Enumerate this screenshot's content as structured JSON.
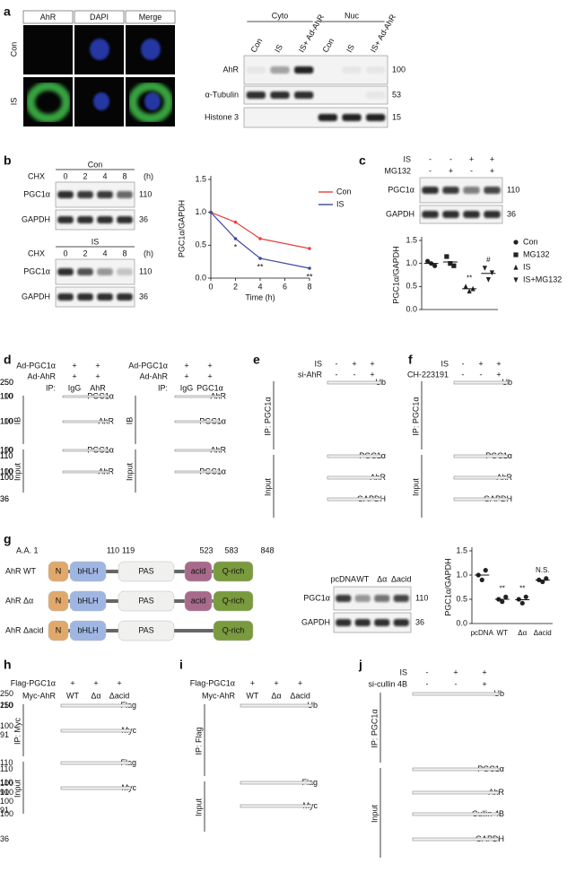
{
  "panels": {
    "a": {
      "label": "a",
      "image_headers": [
        "AhR",
        "DAPI",
        "Merge"
      ],
      "image_rows": [
        "Con",
        "IS"
      ],
      "fractions": [
        "Cyto",
        "Nuc"
      ],
      "lanes": [
        "Con",
        "IS",
        "IS+ Ad-AhR",
        "Con",
        "IS",
        "IS+ Ad-AhR"
      ],
      "rows": [
        {
          "name": "AhR",
          "mw": [
            "100"
          ]
        },
        {
          "name": "α-Tubulin",
          "mw": [
            "53"
          ]
        },
        {
          "name": "Histone 3",
          "mw": [
            "15"
          ]
        }
      ]
    },
    "b": {
      "label": "b",
      "blots": [
        {
          "title": "Con",
          "treatment": "CHX",
          "lanes": [
            "0",
            "2",
            "4",
            "8"
          ],
          "unit": "(h)",
          "rows": [
            {
              "name": "PGC1α",
              "mw": [
                "110"
              ]
            },
            {
              "name": "GAPDH",
              "mw": [
                "36"
              ]
            }
          ]
        },
        {
          "title": "IS",
          "treatment": "CHX",
          "lanes": [
            "0",
            "2",
            "4",
            "8"
          ],
          "unit": "(h)",
          "rows": [
            {
              "name": "PGC1α",
              "mw": [
                "110"
              ]
            },
            {
              "name": "GAPDH",
              "mw": [
                "36"
              ]
            }
          ]
        }
      ],
      "chart": {
        "type": "line",
        "x": [
          0,
          2,
          4,
          8
        ],
        "series": [
          {
            "name": "Con",
            "color": "#e8413c",
            "values": [
              1.0,
              0.85,
              0.6,
              0.45
            ]
          },
          {
            "name": "IS",
            "color": "#3b4a9c",
            "values": [
              1.0,
              0.6,
              0.3,
              0.15
            ]
          }
        ],
        "xlim": [
          0,
          8
        ],
        "xticks": [
          0,
          2,
          4,
          6,
          8
        ],
        "ylim": [
          0,
          1.5
        ],
        "yticks": [
          {
            "value": 0,
            "label": "0.0"
          },
          0.5,
          {
            "value": 1,
            "label": "1.0"
          },
          1.5
        ],
        "xlabel": "Time (h)",
        "ylabel": "PGC1α/GAPDH",
        "annotations": [
          {
            "x": 2,
            "text": "*"
          },
          {
            "x": 4,
            "text": "**"
          },
          {
            "x": 8,
            "text": "**"
          }
        ]
      }
    },
    "c": {
      "label": "c",
      "conditions": [
        {
          "name": "IS",
          "marks": [
            "-",
            "-",
            "+",
            "+"
          ]
        },
        {
          "name": "MG132",
          "marks": [
            "-",
            "+",
            "-",
            "+"
          ]
        }
      ],
      "rows": [
        {
          "name": "PGC1α",
          "mw": [
            "110"
          ]
        },
        {
          "name": "GAPDH",
          "mw": [
            "36"
          ]
        }
      ],
      "chart": {
        "type": "scatter",
        "categories": [
          "Con",
          "MG132",
          "IS",
          "IS+MG132"
        ],
        "markers": [
          "circle",
          "square",
          "triangle-up",
          "triangle-down"
        ],
        "points": [
          [
            1.05,
            1.0,
            0.95
          ],
          [
            1.15,
            1.0,
            0.95
          ],
          [
            0.5,
            0.4,
            0.45
          ],
          [
            0.9,
            0.65,
            0.8
          ]
        ],
        "ylim": [
          0,
          1.5
        ],
        "yticks": [
          {
            "value": 0,
            "label": "0.0"
          },
          0.5,
          {
            "value": 1,
            "label": "1.0"
          },
          1.5
        ],
        "ylabel": "PGC1α/GAPDH",
        "legend": true,
        "annotations": [
          {
            "category": 2,
            "text": "**"
          },
          {
            "category": 3,
            "text": "#"
          }
        ]
      }
    },
    "d": {
      "label": "d",
      "blots": [
        {
          "conditions": [
            {
              "name": "Ad-PGC1α",
              "marks": [
                "+",
                "+"
              ]
            },
            {
              "name": "Ad-AhR",
              "marks": [
                "+",
                "+"
              ]
            }
          ],
          "ip_label": "IP:",
          "lanes": [
            "IgG",
            "AhR"
          ],
          "sections": [
            {
              "name": "IB",
              "rows": [
                {
                  "name": "PGC1α",
                  "mw": [
                    "110"
                  ]
                },
                {
                  "name": "AhR",
                  "mw": [
                    "100"
                  ]
                }
              ]
            },
            {
              "name": "Input",
              "rows": [
                {
                  "name": "PGC1α",
                  "mw": [
                    "110"
                  ]
                },
                {
                  "name": "AhR",
                  "mw": [
                    "100"
                  ]
                }
              ]
            }
          ]
        },
        {
          "conditions": [
            {
              "name": "Ad-PGC1α",
              "marks": [
                "+",
                "+"
              ]
            },
            {
              "name": "Ad-AhR",
              "marks": [
                "+",
                "+"
              ]
            }
          ],
          "ip_label": "IP:",
          "lanes": [
            "IgG",
            "PGC1α"
          ],
          "sections": [
            {
              "name": "IB",
              "rows": [
                {
                  "name": "AhR",
                  "mw": [
                    "100"
                  ]
                },
                {
                  "name": "PGC1α",
                  "mw": [
                    "110"
                  ]
                }
              ]
            },
            {
              "name": "Input",
              "rows": [
                {
                  "name": "AhR",
                  "mw": [
                    "100"
                  ]
                },
                {
                  "name": "PGC1α",
                  "mw": [
                    "110"
                  ]
                }
              ]
            }
          ]
        }
      ]
    },
    "e": {
      "label": "e",
      "conditions": [
        {
          "name": "IS",
          "marks": [
            "-",
            "+",
            "+"
          ]
        },
        {
          "name": "si-AhR",
          "marks": [
            "-",
            "-",
            "+"
          ]
        }
      ],
      "sections": [
        {
          "name": "IP: PGC1α",
          "rows": [
            {
              "name": "Ub",
              "mw": [
                "250"
              ]
            }
          ]
        },
        {
          "name": "Input",
          "rows": [
            {
              "name": "PGC1α",
              "mw": [
                "110"
              ]
            },
            {
              "name": "AhR",
              "mw": [
                "100"
              ]
            },
            {
              "name": "GAPDH",
              "mw": [
                "36"
              ]
            }
          ]
        }
      ]
    },
    "f": {
      "label": "f",
      "conditions": [
        {
          "name": "IS",
          "marks": [
            "-",
            "+",
            "+"
          ]
        },
        {
          "name": "CH-223191",
          "marks": [
            "-",
            "-",
            "+"
          ]
        }
      ],
      "sections": [
        {
          "name": "IP: PGC1α",
          "rows": [
            {
              "name": "Ub",
              "mw": [
                "250"
              ]
            }
          ]
        },
        {
          "name": "Input",
          "rows": [
            {
              "name": "PGC1α",
              "mw": [
                "110"
              ]
            },
            {
              "name": "AhR",
              "mw": [
                "100"
              ]
            },
            {
              "name": "GAPDH",
              "mw": [
                "36"
              ]
            }
          ]
        }
      ]
    },
    "g": {
      "label": "g",
      "aa_label": "A.A. 1",
      "positions": [
        "110",
        "119",
        "523",
        "583",
        "848"
      ],
      "constructs": [
        {
          "name": "AhR WT",
          "domains": [
            "N",
            "bHLH",
            "PAS",
            "acid",
            "Q-rich"
          ]
        },
        {
          "name": "AhR Δα",
          "domains": [
            "N",
            "bHLH",
            "PAS",
            "acid",
            "Q-rich"
          ]
        },
        {
          "name": "AhR Δacid",
          "domains": [
            "N",
            "bHLH",
            "PAS",
            "Q-rich"
          ]
        }
      ],
      "lanes": [
        "pcDNA",
        "WT",
        "Δα",
        "Δacid"
      ],
      "rows": [
        {
          "name": "PGC1α",
          "mw": [
            "110"
          ]
        },
        {
          "name": "GAPDH",
          "mw": [
            "36"
          ]
        }
      ],
      "chart": {
        "type": "scatter",
        "categories": [
          "pcDNA",
          "WT",
          "Δα",
          "Δacid"
        ],
        "points": [
          [
            1.0,
            0.9,
            1.1
          ],
          [
            0.5,
            0.45,
            0.55
          ],
          [
            0.5,
            0.42,
            0.55
          ],
          [
            0.9,
            0.86,
            0.93
          ]
        ],
        "ylim": [
          0,
          1.5
        ],
        "yticks": [
          {
            "value": 0,
            "label": "0.0"
          },
          0.5,
          {
            "value": 1,
            "label": "1.0"
          },
          1.5
        ],
        "ylabel": "PGC1α/GAPDH",
        "legend": false,
        "annotations": [
          {
            "category": 1,
            "text": "**"
          },
          {
            "category": 2,
            "text": "**"
          },
          {
            "category": 3,
            "text": "N.S."
          }
        ]
      }
    },
    "h": {
      "label": "h",
      "conditions": [
        {
          "name": "Flag-PGC1α",
          "marks": [
            "+",
            "+",
            "+"
          ]
        }
      ],
      "lane_row": {
        "name": "Myc-AhR",
        "lanes": [
          "WT",
          "Δα",
          "Δacid"
        ]
      },
      "sections": [
        {
          "name": "IP: Myc",
          "rows": [
            {
              "name": "Flag",
              "mw": [
                "110"
              ]
            },
            {
              "name": "Myc",
              "mw": [
                "100",
                "91"
              ]
            }
          ]
        },
        {
          "name": "Input",
          "rows": [
            {
              "name": "Flag",
              "mw": [
                "110"
              ]
            },
            {
              "name": "Myc",
              "mw": [
                "100",
                "91"
              ]
            }
          ]
        }
      ]
    },
    "i": {
      "label": "i",
      "conditions": [
        {
          "name": "Flag-PGC1α",
          "marks": [
            "+",
            "+",
            "+"
          ]
        }
      ],
      "lane_row": {
        "name": "Myc-AhR",
        "lanes": [
          "WT",
          "Δα",
          "Δacid"
        ]
      },
      "sections": [
        {
          "name": "IP: Flag",
          "rows": [
            {
              "name": "Ub",
              "mw": [
                "250"
              ]
            }
          ]
        },
        {
          "name": "Input",
          "rows": [
            {
              "name": "Flag",
              "mw": [
                "110"
              ]
            },
            {
              "name": "Myc",
              "mw": [
                "100",
                "91"
              ]
            }
          ]
        }
      ]
    },
    "j": {
      "label": "j",
      "conditions": [
        {
          "name": "IS",
          "marks": [
            "-",
            "+",
            "+"
          ]
        },
        {
          "name": "si-cullin 4B",
          "marks": [
            "-",
            "-",
            "+"
          ]
        }
      ],
      "sections": [
        {
          "name": "IP: PGC1α",
          "rows": [
            {
              "name": "Ub",
              "mw": [
                "250"
              ]
            }
          ]
        },
        {
          "name": "Input",
          "rows": [
            {
              "name": "PGC1α",
              "mw": [
                "110"
              ]
            },
            {
              "name": "AhR",
              "mw": [
                "100"
              ]
            },
            {
              "name": "Cullin 4B",
              "mw": [
                "100"
              ]
            },
            {
              "name": "GAPDH",
              "mw": [
                "36"
              ]
            }
          ]
        }
      ]
    }
  }
}
